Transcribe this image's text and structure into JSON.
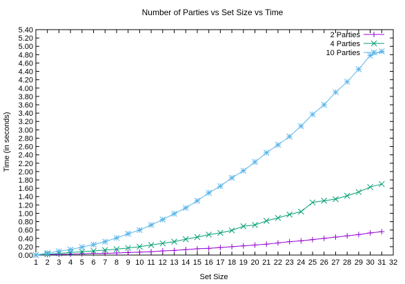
{
  "chart_data": {
    "type": "line",
    "title": "Number of Parties vs Set Size vs Time",
    "xlabel": "Set Size",
    "ylabel": "Time (in seconds)",
    "xlim": [
      1,
      32
    ],
    "ylim": [
      0,
      5.4
    ],
    "x_ticks": [
      "1",
      "2",
      "3",
      "4",
      "5",
      "6",
      "7",
      "8",
      "9",
      "10",
      "11",
      "12",
      "13",
      "14",
      "15",
      "16",
      "17",
      "18",
      "19",
      "20",
      "21",
      "22",
      "23",
      "24",
      "25",
      "26",
      "27",
      "28",
      "29",
      "30",
      "31",
      "32"
    ],
    "y_ticks": [
      "0.00",
      "0.20",
      "0.40",
      "0.60",
      "0.80",
      "1.00",
      "1.20",
      "1.40",
      "1.60",
      "1.80",
      "2.00",
      "2.20",
      "2.40",
      "2.60",
      "2.80",
      "3.00",
      "3.20",
      "3.40",
      "3.60",
      "3.80",
      "4.00",
      "4.20",
      "4.40",
      "4.60",
      "4.80",
      "5.00",
      "5.20",
      "5.40"
    ],
    "legend_position": "top-right",
    "grid": false,
    "x": [
      1,
      2,
      3,
      4,
      5,
      6,
      7,
      8,
      9,
      10,
      11,
      12,
      13,
      14,
      15,
      16,
      17,
      18,
      19,
      20,
      21,
      22,
      23,
      24,
      25,
      26,
      27,
      28,
      29,
      30,
      31
    ],
    "series": [
      {
        "name": "2 Parties",
        "color": "#9400d3",
        "marker": "plus",
        "values": [
          0.0,
          0.01,
          0.015,
          0.02,
          0.03,
          0.04,
          0.04,
          0.05,
          0.06,
          0.07,
          0.08,
          0.1,
          0.11,
          0.13,
          0.15,
          0.16,
          0.18,
          0.2,
          0.22,
          0.24,
          0.26,
          0.29,
          0.32,
          0.34,
          0.37,
          0.4,
          0.43,
          0.46,
          0.49,
          0.53,
          0.56
        ]
      },
      {
        "name": "4 Parties",
        "color": "#009e73",
        "marker": "x",
        "values": [
          0.0,
          0.02,
          0.04,
          0.06,
          0.08,
          0.1,
          0.12,
          0.14,
          0.17,
          0.2,
          0.24,
          0.28,
          0.32,
          0.38,
          0.43,
          0.49,
          0.53,
          0.59,
          0.69,
          0.72,
          0.82,
          0.89,
          0.97,
          1.04,
          1.26,
          1.3,
          1.34,
          1.42,
          1.51,
          1.63,
          1.7
        ]
      },
      {
        "name": "10 Parties",
        "color": "#56b4e9",
        "marker": "star",
        "values": [
          0.0,
          0.05,
          0.09,
          0.13,
          0.19,
          0.25,
          0.32,
          0.41,
          0.51,
          0.6,
          0.72,
          0.85,
          0.99,
          1.13,
          1.3,
          1.49,
          1.65,
          1.85,
          2.02,
          2.23,
          2.45,
          2.64,
          2.84,
          3.09,
          3.37,
          3.6,
          3.9,
          4.15,
          4.45,
          4.78,
          4.88
        ]
      }
    ]
  }
}
